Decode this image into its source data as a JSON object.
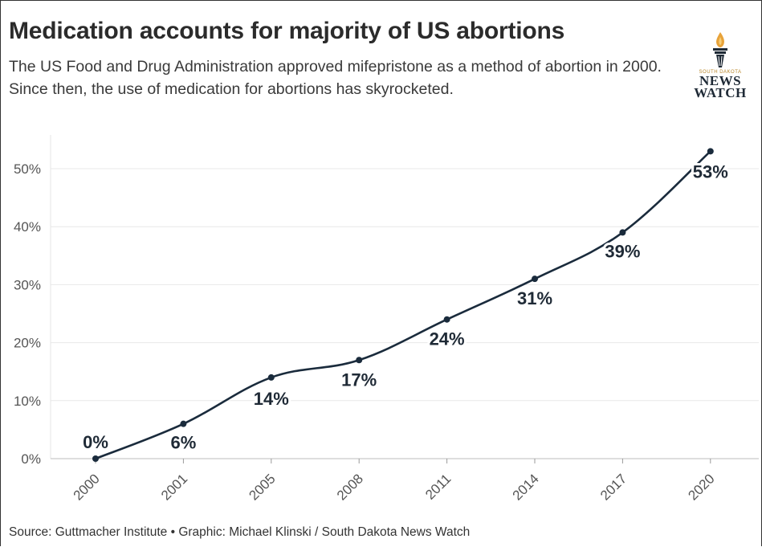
{
  "header": {
    "title": "Medication accounts for majority of US abortions",
    "subtitle": "The US Food and Drug Administration approved mifepristone as a method of abortion in 2000. Since then, the use of medication for abortions has skyrocketed."
  },
  "logo": {
    "top_text": "SOUTH DAKOTA",
    "line1": "NEWS",
    "line2": "WATCH",
    "icon": "torch-icon",
    "colors": {
      "flame": "#e8a33a",
      "dark": "#1f2a36"
    }
  },
  "footer": {
    "source": "Source: Guttmacher Institute • Graphic: Michael Klinski / South Dakota News Watch"
  },
  "chart_data": {
    "type": "line",
    "categories": [
      "2000",
      "2001",
      "2005",
      "2008",
      "2011",
      "2014",
      "2017",
      "2020"
    ],
    "values": [
      0,
      6,
      14,
      17,
      24,
      31,
      39,
      53
    ],
    "data_labels": [
      "0%",
      "6%",
      "14%",
      "17%",
      "24%",
      "31%",
      "39%",
      "53%"
    ],
    "y_ticks": [
      0,
      10,
      20,
      30,
      40,
      50
    ],
    "y_tick_labels": [
      "0%",
      "10%",
      "20%",
      "30%",
      "40%",
      "50%"
    ],
    "ylim": [
      0,
      55
    ],
    "grid": true,
    "line_color": "#1a2b3c",
    "title": "",
    "xlabel": "",
    "ylabel": ""
  }
}
